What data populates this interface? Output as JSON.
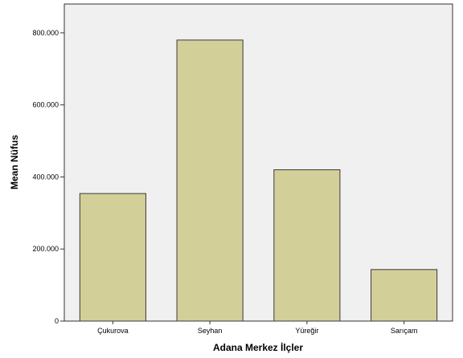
{
  "chart_data": {
    "type": "bar",
    "categories": [
      "Çukurova",
      "Seyhan",
      "Yüreğir",
      "Sarıçam"
    ],
    "values": [
      354000,
      780000,
      420000,
      143000
    ],
    "xlabel": "Adana Merkez İlçler",
    "ylabel": "Mean Nüfus",
    "ylim": [
      0,
      880000
    ],
    "yticks": [
      0,
      200000,
      400000,
      600000,
      800000
    ],
    "ytick_labels": [
      "0",
      "200.000",
      "400.000",
      "600.000",
      "800.000"
    ],
    "grid": false,
    "colors": {
      "bar_fill": "#d3cf98",
      "bar_stroke": "#3a3a3a",
      "plot_bg": "#f0f0f0",
      "axis": "#333333"
    }
  }
}
